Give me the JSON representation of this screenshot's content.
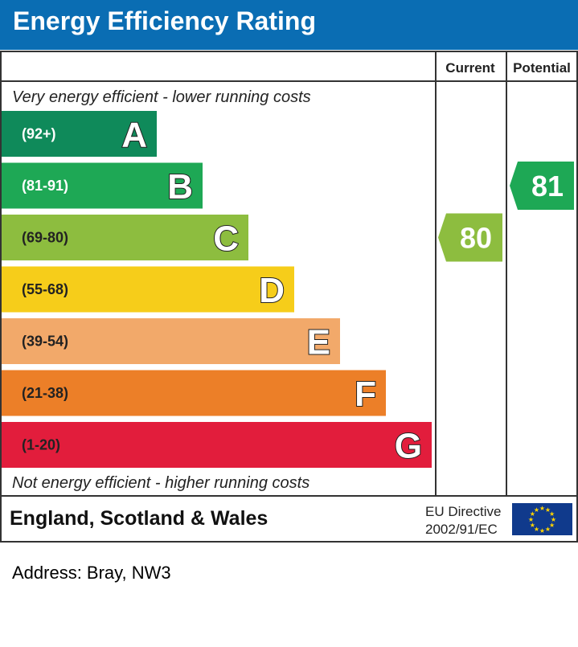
{
  "header": {
    "title": "Energy Efficiency Rating"
  },
  "columns": {
    "current": "Current",
    "potential": "Potential"
  },
  "top_note": "Very energy efficient - lower running costs",
  "bottom_note": "Not energy efficient - higher running costs",
  "footer": {
    "region": "England, Scotland & Wales",
    "directive_line1": "EU Directive",
    "directive_line2": "2002/91/EC"
  },
  "address": "Address: Bray, NW3",
  "chart_data": {
    "type": "bar",
    "bands": [
      {
        "range": "(92+)",
        "letter": "A",
        "color": "#0f8a5a"
      },
      {
        "range": "(81-91)",
        "letter": "B",
        "color": "#1ea855"
      },
      {
        "range": "(69-80)",
        "letter": "C",
        "color": "#8dbd3f"
      },
      {
        "range": "(55-68)",
        "letter": "D",
        "color": "#f6cd1a"
      },
      {
        "range": "(39-54)",
        "letter": "E",
        "color": "#f2a96a"
      },
      {
        "range": "(21-38)",
        "letter": "F",
        "color": "#ec7f28"
      },
      {
        "range": "(1-20)",
        "letter": "G",
        "color": "#e21d3c"
      }
    ],
    "current": {
      "value": 80,
      "band": "C",
      "color": "#8dbd3f"
    },
    "potential": {
      "value": 81,
      "band": "B",
      "color": "#1ea855"
    }
  },
  "eu_flag_color": "#103a8c"
}
